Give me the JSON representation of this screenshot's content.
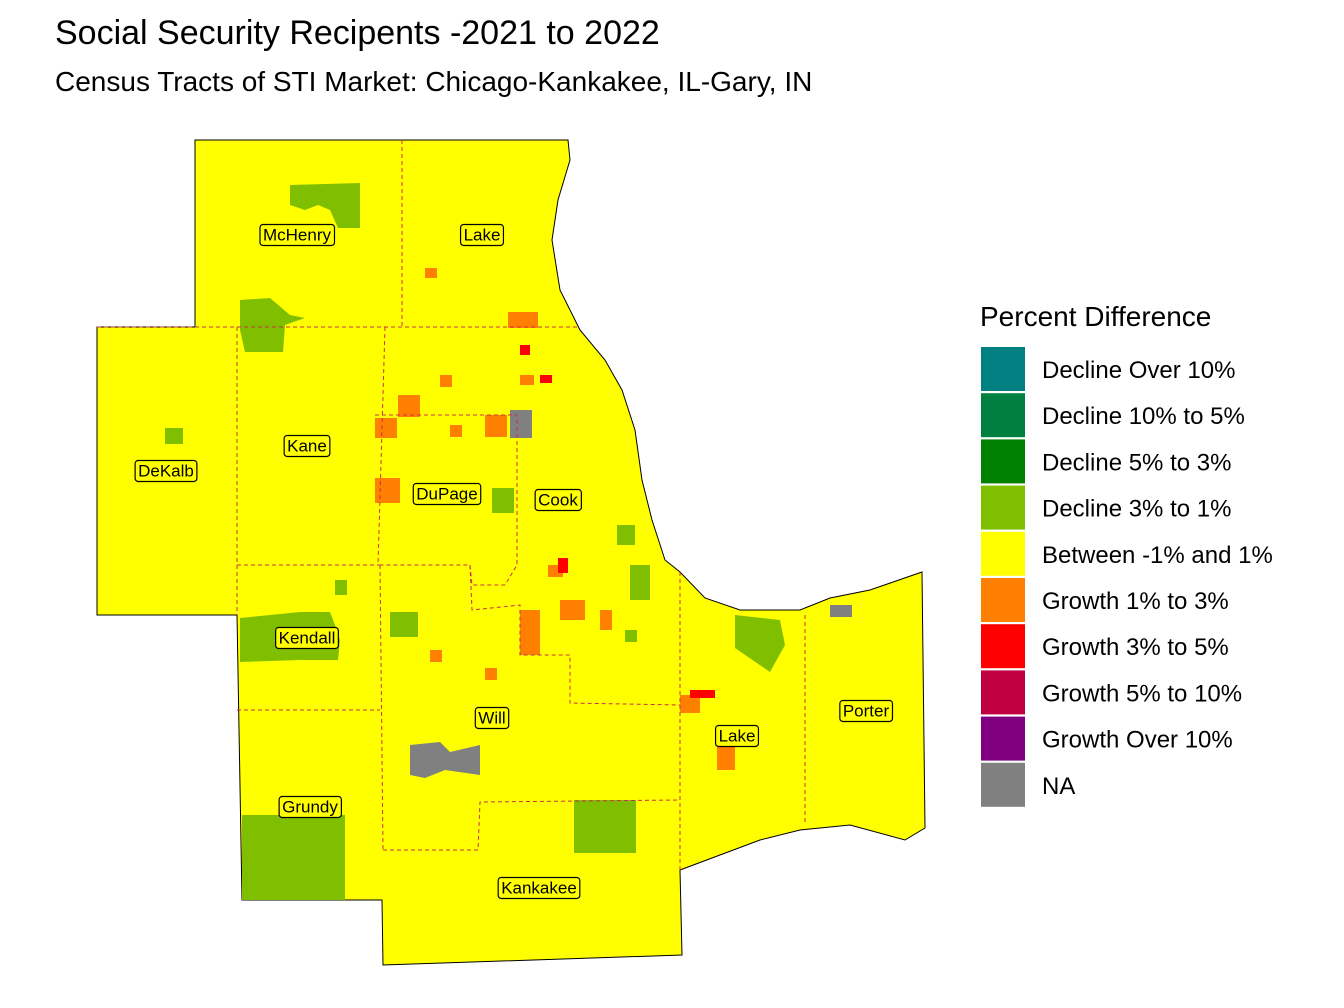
{
  "title": "Social Security Recipents -2021 to 2022",
  "subtitle": "Census Tracts of STI Market: Chicago-Kankakee, IL-Gary, IN",
  "legend": {
    "title": "Percent Difference",
    "items": [
      {
        "label": "Decline Over 10%",
        "color": "#008080"
      },
      {
        "label": "Decline 10% to 5%",
        "color": "#008040"
      },
      {
        "label": "Decline 5% to 3%",
        "color": "#008000"
      },
      {
        "label": "Decline 3% to 1%",
        "color": "#80bf00"
      },
      {
        "label": "Between -1% and 1%",
        "color": "#ffff00"
      },
      {
        "label": "Growth 1% to 3%",
        "color": "#ff8000"
      },
      {
        "label": "Growth 3% to 5%",
        "color": "#ff0000"
      },
      {
        "label": "Growth 5% to 10%",
        "color": "#c00040"
      },
      {
        "label": "Growth Over 10%",
        "color": "#800080"
      },
      {
        "label": "NA",
        "color": "#808080"
      }
    ]
  },
  "counties": [
    "McHenry",
    "Lake",
    "Kane",
    "DeKalb",
    "DuPage",
    "Cook",
    "Kendall",
    "Will",
    "Lake",
    "Porter",
    "Grundy",
    "Kankakee"
  ]
}
